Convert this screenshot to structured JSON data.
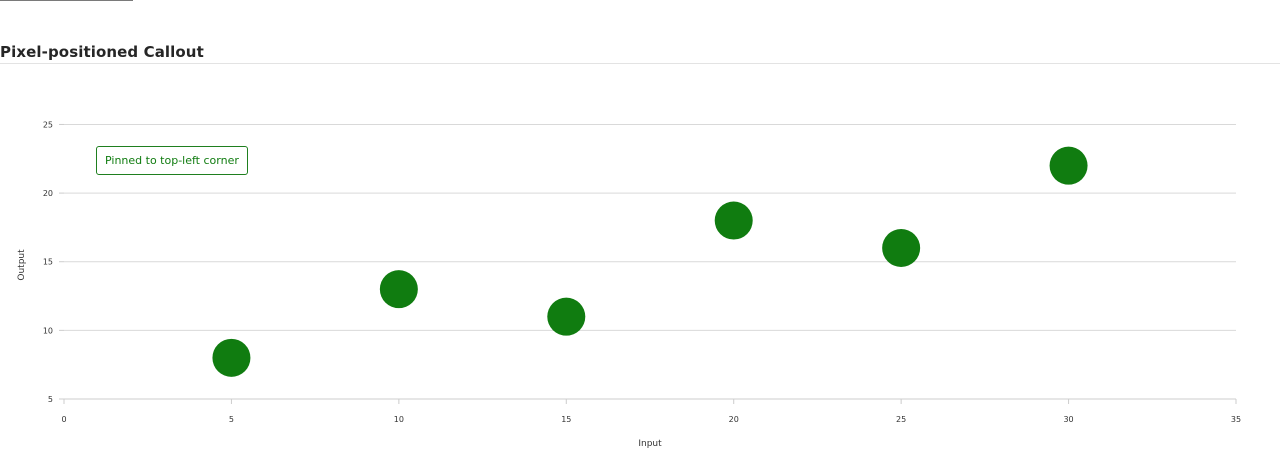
{
  "page": {
    "title": "Pixel-positioned Callout"
  },
  "chart_data": {
    "type": "scatter",
    "title": "Pixel-positioned Callout",
    "xlabel": "Input",
    "ylabel": "Output",
    "xlim": [
      0,
      35
    ],
    "ylim": [
      5,
      27
    ],
    "x_ticks": [
      0,
      5,
      10,
      15,
      20,
      25,
      30,
      35
    ],
    "y_ticks": [
      5,
      10,
      15,
      20,
      25
    ],
    "grid": "horizontal",
    "series": [
      {
        "color": "#107c10",
        "points": [
          {
            "x": 5,
            "y": 8
          },
          {
            "x": 10,
            "y": 13
          },
          {
            "x": 15,
            "y": 11
          },
          {
            "x": 20,
            "y": 18
          },
          {
            "x": 25,
            "y": 16
          },
          {
            "x": 30,
            "y": 22
          }
        ]
      }
    ],
    "annotation": {
      "text": "Pinned to top-left corner",
      "color": "#107c10"
    }
  }
}
